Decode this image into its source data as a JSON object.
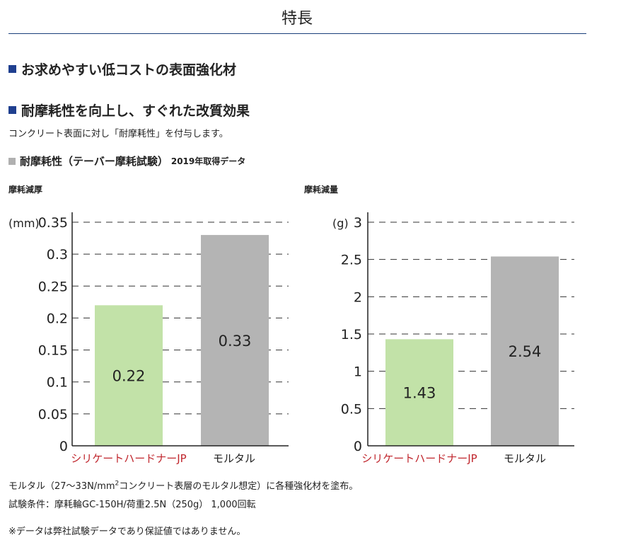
{
  "page": {
    "title": "特長",
    "heading1": "お求めやすい低コストの表面強化材",
    "heading2": "耐摩耗性を向上し、すぐれた改質効果",
    "intro": "コンクリート表面に対し「耐摩耗性」を付与します。",
    "section_title": "耐摩耗性（テーバー摩耗試験）",
    "section_sub": "2019年取得データ",
    "note1_pre": "モルタル（27～33N/mm",
    "note1_sup": "2",
    "note1_post": "コンクリート表層のモルタル想定）に各種強化材を塗布。",
    "note2": "試験条件：摩耗輪GC-150H/荷重2.5N（250g） 1,000回転",
    "disclaimer": "※データは弊社試験データであり保証値ではありません。"
  },
  "colors": {
    "accent_square": "#1f3f8f",
    "gray_square": "#b0b0b0",
    "product_label": "#c0262d"
  },
  "chart_data": [
    {
      "type": "bar",
      "title": "摩耗減厚",
      "unit": "(mm)",
      "categories": [
        "シリケートハードナーJP",
        "モルタル"
      ],
      "values": [
        0.22,
        0.33
      ],
      "value_labels": [
        "0.22",
        "0.33"
      ],
      "bar_colors": [
        "#c2e2a8",
        "#b4b4b4"
      ],
      "ylim": [
        0,
        0.35
      ],
      "ticks": [
        "0",
        "0.05",
        "0.1",
        "0.15",
        "0.2",
        "0.25",
        "0.3",
        "0.35"
      ],
      "grid": "dashed"
    },
    {
      "type": "bar",
      "title": "摩耗減量",
      "unit": "(g)",
      "categories": [
        "シリケートハードナーJP",
        "モルタル"
      ],
      "values": [
        1.43,
        2.54
      ],
      "value_labels": [
        "1.43",
        "2.54"
      ],
      "bar_colors": [
        "#c2e2a8",
        "#b4b4b4"
      ],
      "ylim": [
        0,
        3
      ],
      "ticks": [
        "0",
        "0.5",
        "1",
        "1.5",
        "2",
        "2.5",
        "3"
      ],
      "grid": "dashed"
    }
  ]
}
